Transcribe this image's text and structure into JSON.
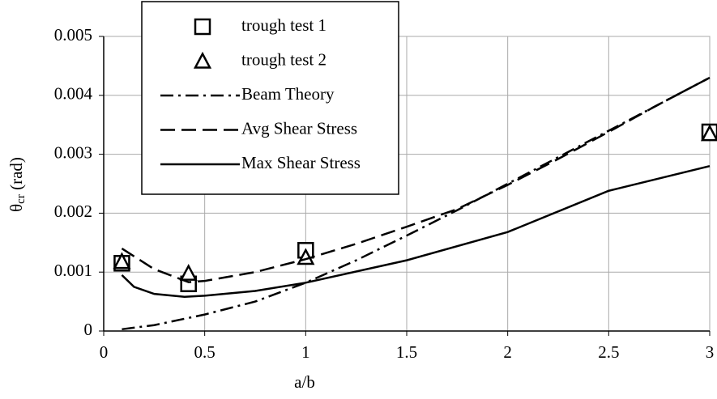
{
  "chart_data": {
    "type": "line",
    "x_label": "a/b",
    "y_label": {
      "symbol": "θ",
      "subscript": "cr",
      "unit": "(rad)"
    },
    "xlim": [
      0,
      3
    ],
    "xticks": [
      0,
      0.5,
      1,
      1.5,
      2,
      2.5,
      3
    ],
    "ylim": [
      0,
      0.005
    ],
    "yticks": [
      0,
      0.001,
      0.002,
      0.003,
      0.004,
      0.005
    ],
    "grid": true,
    "legend": "top-left",
    "series": [
      {
        "name": "trough test 1",
        "color": "#000000",
        "marker": "square",
        "x": [
          0.09,
          0.42,
          1.0,
          3.0
        ],
        "values": [
          0.00115,
          0.0008,
          0.00137,
          0.00338
        ]
      },
      {
        "name": "trough test 2",
        "color": "#000000",
        "marker": "triangle",
        "x": [
          0.09,
          0.42,
          1.0,
          3.0
        ],
        "values": [
          0.00118,
          0.00098,
          0.00125,
          0.00335
        ]
      },
      {
        "name": "Beam Theory",
        "color": "#000000",
        "dash": "dashdot",
        "x": [
          0.09,
          0.25,
          0.5,
          0.75,
          1,
          1.25,
          1.5,
          1.75,
          2,
          2.25,
          2.5,
          2.75,
          3
        ],
        "values": [
          3e-05,
          0.0001,
          0.00028,
          0.0005,
          0.00082,
          0.0012,
          0.00162,
          0.00205,
          0.0025,
          0.00295,
          0.0034,
          0.00385,
          0.0043
        ]
      },
      {
        "name": "Avg Shear Stress",
        "color": "#000000",
        "dash": "dashed",
        "x": [
          0.09,
          0.25,
          0.42,
          0.5,
          0.75,
          1,
          1.25,
          1.5,
          1.75,
          2,
          2.25,
          2.5,
          2.75,
          3
        ],
        "values": [
          0.0014,
          0.00105,
          0.00083,
          0.00085,
          0.001,
          0.00122,
          0.00148,
          0.00177,
          0.00207,
          0.00248,
          0.00292,
          0.00338,
          0.00385,
          0.0043
        ]
      },
      {
        "name": "Max Shear Stress",
        "color": "#000000",
        "dash": "solid",
        "x": [
          0.09,
          0.15,
          0.25,
          0.4,
          0.5,
          0.75,
          1,
          1.5,
          2,
          2.5,
          3
        ],
        "values": [
          0.00095,
          0.00075,
          0.00063,
          0.00058,
          0.0006,
          0.00068,
          0.00082,
          0.0012,
          0.00168,
          0.00238,
          0.0028
        ]
      }
    ]
  }
}
